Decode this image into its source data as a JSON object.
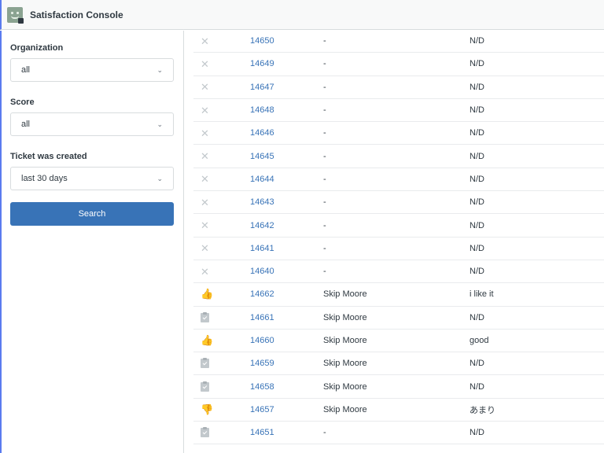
{
  "app": {
    "title": "Satisfaction Console"
  },
  "filters": {
    "organization": {
      "label": "Organization",
      "value": "all"
    },
    "score": {
      "label": "Score",
      "value": "all"
    },
    "created": {
      "label": "Ticket was created",
      "value": "last 30 days"
    },
    "search_label": "Search"
  },
  "icons": {
    "x": "✕",
    "up": "👍",
    "down": "👎",
    "chevron": "⌄"
  },
  "colors": {
    "link": "#3873b7",
    "good": "#5e9e26",
    "bad": "#cc3340",
    "button": "#3873b7"
  },
  "rows": [
    {
      "icon": "x",
      "id": "14650",
      "name": "-",
      "comment": "N/D"
    },
    {
      "icon": "x",
      "id": "14649",
      "name": "-",
      "comment": "N/D"
    },
    {
      "icon": "x",
      "id": "14647",
      "name": "-",
      "comment": "N/D"
    },
    {
      "icon": "x",
      "id": "14648",
      "name": "-",
      "comment": "N/D"
    },
    {
      "icon": "x",
      "id": "14646",
      "name": "-",
      "comment": "N/D"
    },
    {
      "icon": "x",
      "id": "14645",
      "name": "-",
      "comment": "N/D"
    },
    {
      "icon": "x",
      "id": "14644",
      "name": "-",
      "comment": "N/D"
    },
    {
      "icon": "x",
      "id": "14643",
      "name": "-",
      "comment": "N/D"
    },
    {
      "icon": "x",
      "id": "14642",
      "name": "-",
      "comment": "N/D"
    },
    {
      "icon": "x",
      "id": "14641",
      "name": "-",
      "comment": "N/D"
    },
    {
      "icon": "x",
      "id": "14640",
      "name": "-",
      "comment": "N/D"
    },
    {
      "icon": "up",
      "id": "14662",
      "name": "Skip Moore",
      "comment": "i like it"
    },
    {
      "icon": "clip",
      "id": "14661",
      "name": "Skip Moore",
      "comment": "N/D"
    },
    {
      "icon": "up",
      "id": "14660",
      "name": "Skip Moore",
      "comment": "good"
    },
    {
      "icon": "clip",
      "id": "14659",
      "name": "Skip Moore",
      "comment": "N/D"
    },
    {
      "icon": "clip",
      "id": "14658",
      "name": "Skip Moore",
      "comment": "N/D"
    },
    {
      "icon": "down",
      "id": "14657",
      "name": "Skip Moore",
      "comment": "あまり"
    },
    {
      "icon": "clip",
      "id": "14651",
      "name": "-",
      "comment": "N/D"
    }
  ]
}
